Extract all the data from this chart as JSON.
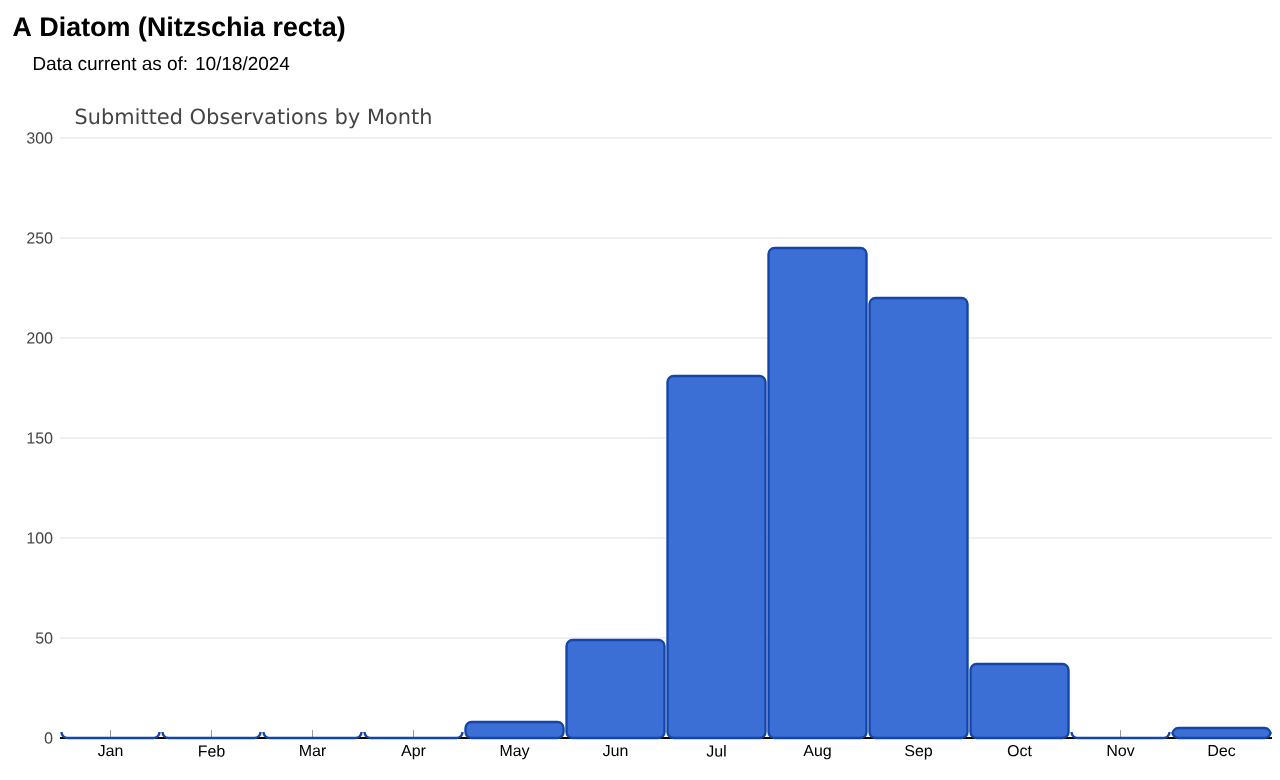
{
  "chart_data": {
    "type": "bar",
    "title": "**A Diatom   (Nitzschia recta)**",
    "subtitle": "Data current as of: 10/18/2024",
    "annotations": [
      "Submitted Observations by Month"
    ],
    "categories": [
      "Jan",
      "Feb",
      "Mar",
      "Apr",
      "May",
      "Jun",
      "Jul",
      "Aug",
      "Sep",
      "Oct",
      "Nov",
      "Dec"
    ],
    "values": [
      0,
      0,
      0,
      0,
      8,
      49,
      181,
      245,
      220,
      37,
      0,
      5
    ],
    "color": "#3b6fd6",
    "ylim": [
      0,
      300
    ],
    "yticks": [
      0,
      50,
      100,
      150,
      200,
      250,
      300
    ],
    "grid": "y"
  }
}
